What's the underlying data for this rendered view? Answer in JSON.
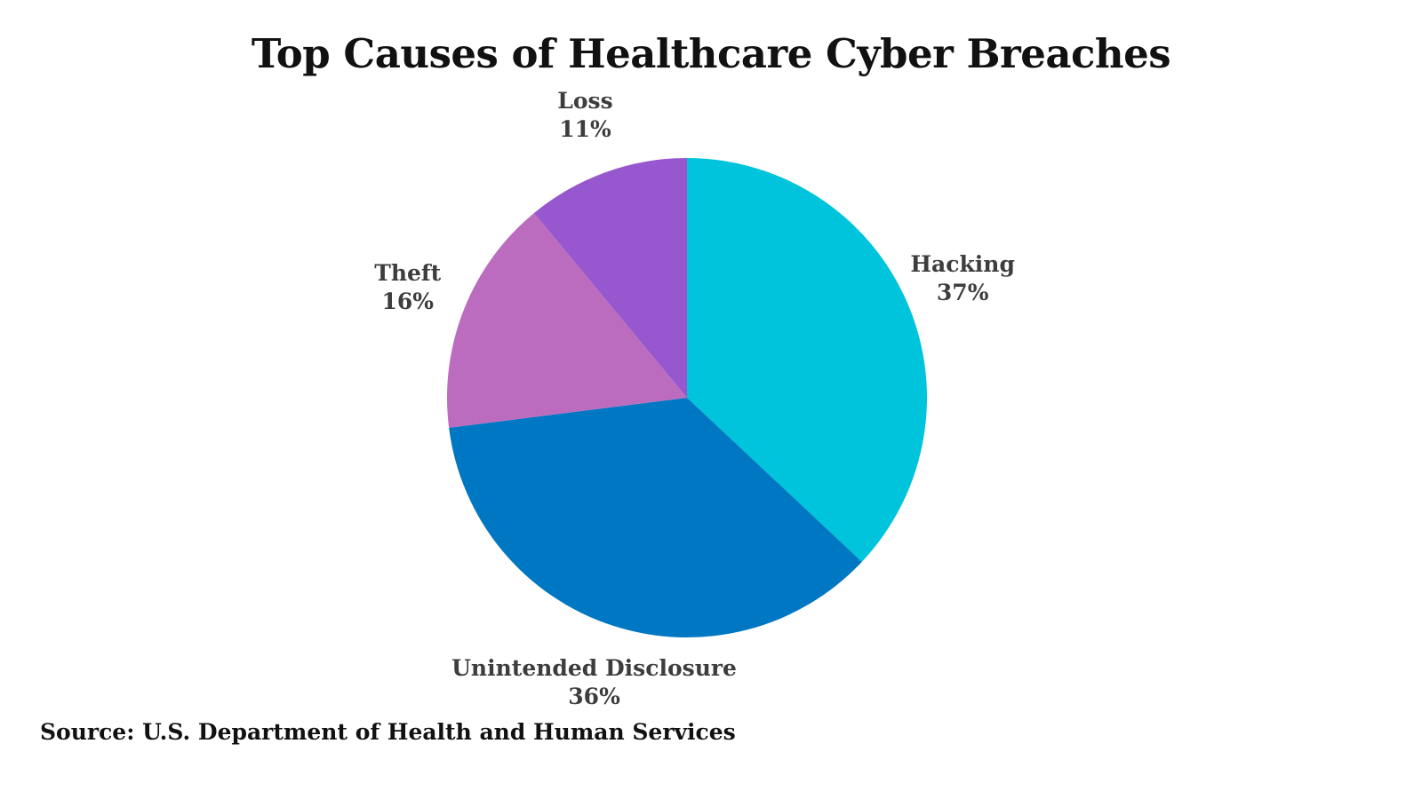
{
  "header": {
    "title": "Top Causes of Healthcare Cyber Breaches"
  },
  "footer": {
    "source": "Source: U.S. Department of Health and Human Services"
  },
  "chart_data": {
    "type": "pie",
    "title": "Top Causes of Healthcare Cyber Breaches",
    "categories": [
      "Hacking",
      "Unintended Disclosure",
      "Theft",
      "Loss"
    ],
    "values": [
      37,
      36,
      16,
      11
    ],
    "pct_labels": [
      "37%",
      "36%",
      "16%",
      "11%"
    ],
    "colors": [
      "#00C4DB",
      "#0077C2",
      "#BC6CBF",
      "#9757CE"
    ],
    "start_position": "12-oclock",
    "direction": "clockwise",
    "label_color": "#3d3d3d",
    "legend": "none",
    "source": "Source: U.S. Department of Health and Human Services"
  }
}
